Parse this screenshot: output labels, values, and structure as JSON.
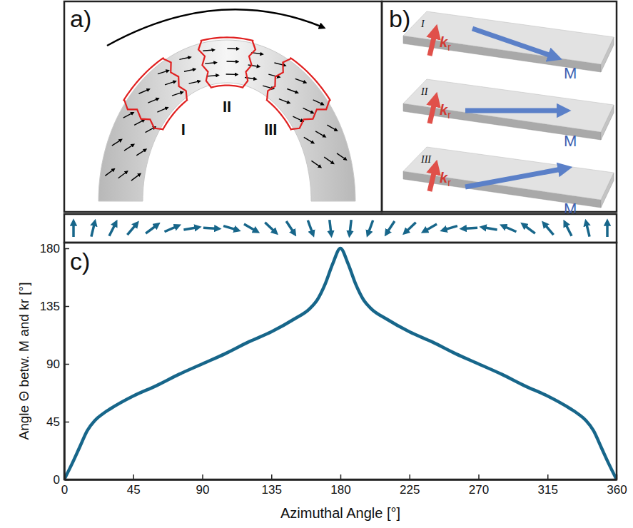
{
  "figure": {
    "panel_a": {
      "label": "a)",
      "regions": [
        "I",
        "II",
        "III"
      ]
    },
    "panel_b": {
      "label": "b)",
      "rows": [
        "I",
        "II",
        "III"
      ],
      "k": "k",
      "k_sub": "r",
      "m": "M"
    },
    "panel_c": {
      "label": "c)"
    }
  },
  "chart_data": {
    "type": "line",
    "x_label": "Azimuthal Angle [°]",
    "y_label": "Angle Θ betw. M and kr [°]",
    "x": [
      0,
      5,
      10,
      15,
      20,
      25,
      30,
      45,
      60,
      75,
      90,
      105,
      120,
      135,
      150,
      160,
      165,
      170,
      175,
      180,
      185,
      190,
      195,
      200,
      210,
      225,
      240,
      255,
      270,
      285,
      300,
      315,
      330,
      335,
      340,
      345,
      350,
      355,
      360
    ],
    "values": [
      0,
      12,
      25,
      38,
      46,
      51,
      55,
      65,
      73,
      82,
      90,
      98,
      107,
      115,
      125,
      133,
      140,
      152,
      168,
      180,
      168,
      152,
      140,
      133,
      125,
      115,
      107,
      98,
      90,
      82,
      73,
      65,
      55,
      51,
      46,
      38,
      25,
      12,
      0
    ],
    "color": "#17668a",
    "xlim": [
      0,
      360
    ],
    "xticks": [
      0,
      45,
      90,
      135,
      180,
      225,
      270,
      315,
      360
    ],
    "ylim": [
      0,
      180
    ],
    "yticks": [
      0,
      45,
      90,
      135,
      180
    ],
    "grid": false
  }
}
